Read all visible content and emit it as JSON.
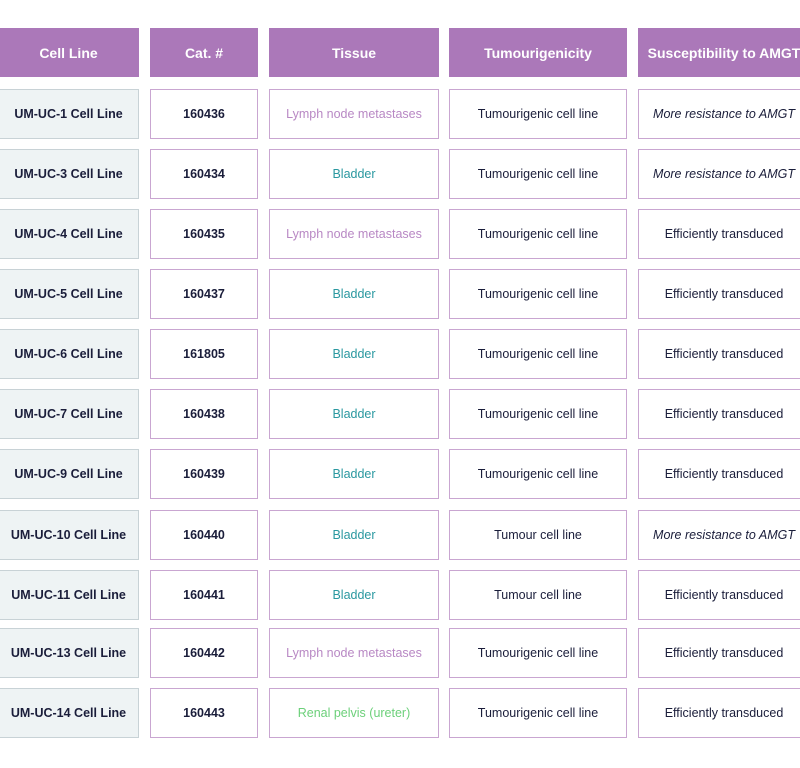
{
  "table": {
    "headers": [
      "Cell Line",
      "Cat. #",
      "Tissue",
      "Tumourigenicity",
      "Susceptibility to AMGT"
    ],
    "tissue_colors": {
      "Lymph node metastases": "#b888c4",
      "Bladder": "#2a98a0",
      "Renal pelvis (ureter)": "#6cd07a"
    },
    "header_color": "#ab78b9",
    "rows": [
      {
        "cell_line": "UM-UC-1 Cell Line",
        "cat": "160436",
        "tissue": "Lymph node metastases",
        "tumourigenicity": "Tumourigenic cell line",
        "susceptibility": "More resistance to AMGT"
      },
      {
        "cell_line": "UM-UC-3 Cell Line",
        "cat": "160434",
        "tissue": "Bladder",
        "tumourigenicity": "Tumourigenic cell line",
        "susceptibility": "More resistance to AMGT"
      },
      {
        "cell_line": "UM-UC-4 Cell Line",
        "cat": "160435",
        "tissue": "Lymph node metastases",
        "tumourigenicity": "Tumourigenic cell line",
        "susceptibility": "Efficiently transduced"
      },
      {
        "cell_line": "UM-UC-5 Cell Line",
        "cat": "160437",
        "tissue": "Bladder",
        "tumourigenicity": "Tumourigenic cell line",
        "susceptibility": "Efficiently transduced"
      },
      {
        "cell_line": "UM-UC-6 Cell Line",
        "cat": "161805",
        "tissue": "Bladder",
        "tumourigenicity": "Tumourigenic cell line",
        "susceptibility": "Efficiently transduced"
      },
      {
        "cell_line": "UM-UC-7 Cell Line",
        "cat": "160438",
        "tissue": "Bladder",
        "tumourigenicity": "Tumourigenic cell line",
        "susceptibility": "Efficiently transduced"
      },
      {
        "cell_line": "UM-UC-9 Cell Line",
        "cat": "160439",
        "tissue": "Bladder",
        "tumourigenicity": "Tumourigenic cell line",
        "susceptibility": "Efficiently transduced"
      },
      {
        "cell_line": "UM-UC-10 Cell Line",
        "cat": "160440",
        "tissue": "Bladder",
        "tumourigenicity": "Tumour cell line",
        "susceptibility": "More resistance to AMGT"
      },
      {
        "cell_line": "UM-UC-11 Cell Line",
        "cat": "160441",
        "tissue": "Bladder",
        "tumourigenicity": "Tumour cell line",
        "susceptibility": "Efficiently transduced"
      },
      {
        "cell_line": "UM-UC-13 Cell Line",
        "cat": "160442",
        "tissue": "Lymph node metastases",
        "tumourigenicity": "Tumourigenic cell line",
        "susceptibility": "Efficiently transduced"
      },
      {
        "cell_line": "UM-UC-14 Cell Line",
        "cat": "160443",
        "tissue": "Renal pelvis (ureter)",
        "tumourigenicity": "Tumourigenic cell line",
        "susceptibility": "Efficiently transduced"
      }
    ]
  }
}
